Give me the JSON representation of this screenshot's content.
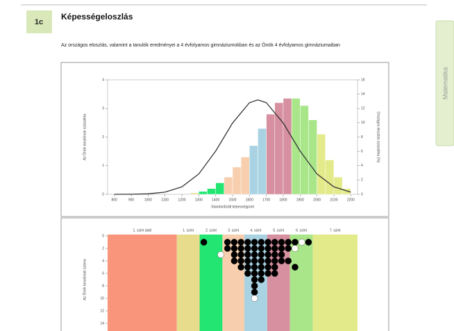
{
  "header": {
    "badge": "1c",
    "title": "Képességeloszlás",
    "description": "Az országos eloszlás, valamint a tanulók eredményei a 4 évfolyamos gimnáziumokban és az Önök 4 évfolyamos gimnáziumaiban"
  },
  "side_tab": "Matematika",
  "chart_data": [
    {
      "type": "histogram",
      "y_label": "Az Önök tanulóinak százaléka",
      "y2_label": "Országos eloszlás százaléka (%)",
      "x_label": "Standardizált képességpont",
      "bins": [
        1250,
        1300,
        1350,
        1400,
        1450,
        1500,
        1550,
        1600,
        1650,
        1700,
        1750,
        1800,
        1850,
        1900,
        1950,
        2000,
        2050,
        2100,
        2150,
        2200
      ],
      "values": [
        0.05,
        0.1,
        0.2,
        0.4,
        0.6,
        0.95,
        1.3,
        1.7,
        2.3,
        2.8,
        3.2,
        3.35,
        3.35,
        3.1,
        2.6,
        2.1,
        1.2,
        0.6,
        0.2
      ],
      "colors": [
        "#e6dc8c",
        "#22e572",
        "#22e572",
        "#22e572",
        "#f7cfae",
        "#f7cfae",
        "#f7cfae",
        "#a9d3e3",
        "#a9d3e3",
        "#d6909f",
        "#d6909f",
        "#d6909f",
        "#a9e68a",
        "#a9e68a",
        "#a9e68a",
        "#e3ea8a",
        "#e3ea8a",
        "#e3ea8a",
        "#e3ea8a"
      ],
      "curve": {
        "color": "#333333",
        "x": [
          800,
          900,
          1000,
          1100,
          1200,
          1300,
          1400,
          1500,
          1600,
          1650,
          1700,
          1800,
          1900,
          2000,
          2100,
          2200
        ],
        "values": [
          0,
          0.003,
          0.017,
          0.075,
          0.26,
          0.71,
          1.51,
          2.49,
          3.2,
          3.3,
          3.2,
          2.49,
          1.51,
          0.71,
          0.26,
          0.075
        ]
      },
      "xlim": [
        760,
        2240
      ],
      "xticks": [
        800,
        900,
        1000,
        1100,
        1200,
        1300,
        1400,
        1500,
        1600,
        1700,
        1800,
        1900,
        2000,
        2100,
        2200
      ],
      "ylim": [
        0,
        4
      ],
      "yticks": [
        0,
        1,
        2,
        3,
        4
      ],
      "y2lim": [
        0,
        16
      ],
      "y2ticks": [
        0,
        2,
        4,
        6,
        8,
        10,
        12,
        14,
        16
      ]
    },
    {
      "type": "dot",
      "y_label": "Az Önök tanulóinak száma",
      "bands": [
        {
          "label": "1. szint alatt",
          "from": 760,
          "to": 1170,
          "color": "#f9957a"
        },
        {
          "label": "1. szint",
          "from": 1170,
          "to": 1305,
          "color": "#e6dc8c"
        },
        {
          "label": "2. szint",
          "from": 1305,
          "to": 1440,
          "color": "#22e572"
        },
        {
          "label": "3. szint",
          "from": 1440,
          "to": 1570,
          "color": "#f7cfae"
        },
        {
          "label": "4. szint",
          "from": 1570,
          "to": 1705,
          "color": "#a9d3e3"
        },
        {
          "label": "5. szint",
          "from": 1705,
          "to": 1840,
          "color": "#d6909f"
        },
        {
          "label": "6. szint",
          "from": 1840,
          "to": 1975,
          "color": "#a9e68a"
        },
        {
          "label": "7. szint",
          "from": 1975,
          "to": 2240,
          "color": "#e3ea8a"
        }
      ],
      "xlim": [
        760,
        2240
      ],
      "ylim": [
        0,
        14
      ],
      "yticks": [
        0,
        2,
        4,
        6,
        8,
        10,
        12,
        14
      ],
      "series": [
        {
          "color": "#000000",
          "x": [
            1330,
            1470,
            1510,
            1550,
            1590,
            1630,
            1670,
            1710,
            1750,
            1790,
            1830,
            1870,
            1950,
            1470,
            1510,
            1550,
            1590,
            1630,
            1670,
            1710,
            1750,
            1790,
            1830,
            1510,
            1550,
            1590,
            1630,
            1670,
            1710,
            1750,
            1790,
            1510,
            1550,
            1590,
            1630,
            1670,
            1710,
            1750,
            1790,
            1830,
            1550,
            1590,
            1630,
            1670,
            1710,
            1750,
            1870,
            1590,
            1630,
            1670,
            1710,
            1750,
            1630,
            1670,
            1630,
            1630
          ],
          "values": [
            1,
            1,
            1,
            1,
            1,
            1,
            1,
            1,
            1,
            1,
            1,
            1,
            1,
            2,
            2,
            2,
            2,
            2,
            2,
            2,
            2,
            2,
            2,
            3,
            3,
            3,
            3,
            3,
            3,
            3,
            3,
            4,
            4,
            4,
            4,
            4,
            4,
            4,
            4,
            4,
            5,
            5,
            5,
            5,
            5,
            5,
            5,
            6,
            6,
            6,
            6,
            6,
            7,
            7,
            8,
            9
          ]
        },
        {
          "color": "#ffffff",
          "x": [
            1910,
            1870,
            1430,
            1630
          ],
          "values": [
            1,
            2,
            3,
            10
          ]
        }
      ]
    }
  ]
}
